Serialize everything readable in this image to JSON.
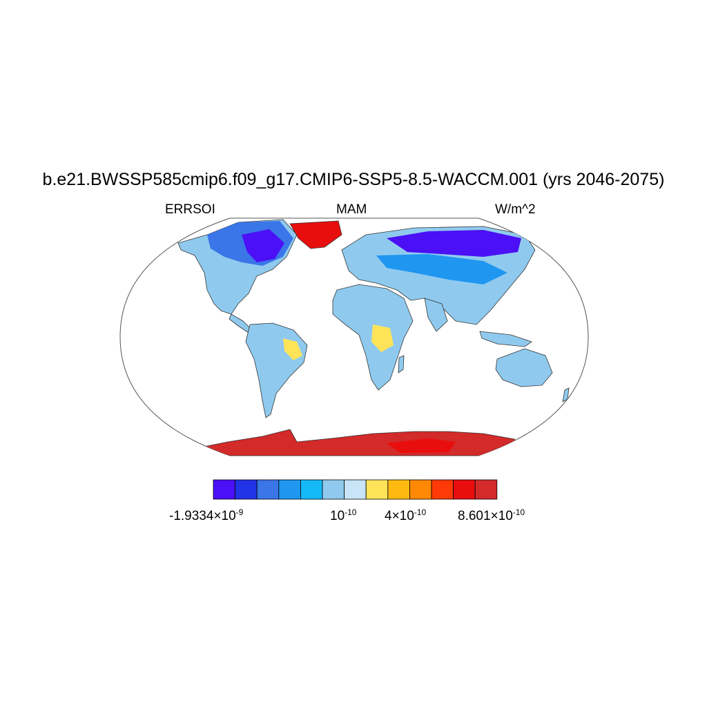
{
  "title": "b.e21.BWSSP585cmip6.f09_g17.CMIP6-SSP5-8.5-WACCM.001 (yrs 2046-2075)",
  "left_label": "ERRSOI",
  "center_label": "MAM",
  "right_label": "W/m^2",
  "colorbar": {
    "colors": [
      "#4b10f5",
      "#2133e6",
      "#3a76e8",
      "#1f96f0",
      "#16b9f8",
      "#8fcaee",
      "#c8e4f6",
      "#ffe45a",
      "#ffba12",
      "#ff8804",
      "#ff3a06",
      "#e80e0e",
      "#d32a2a"
    ],
    "labels": [
      {
        "mantissa": "-1.9334×10",
        "exp": "-9"
      },
      {
        "mantissa": "10",
        "exp": "-10"
      },
      {
        "mantissa": "4×10",
        "exp": "-10"
      },
      {
        "mantissa": "8.601×10",
        "exp": "-10"
      }
    ]
  }
}
